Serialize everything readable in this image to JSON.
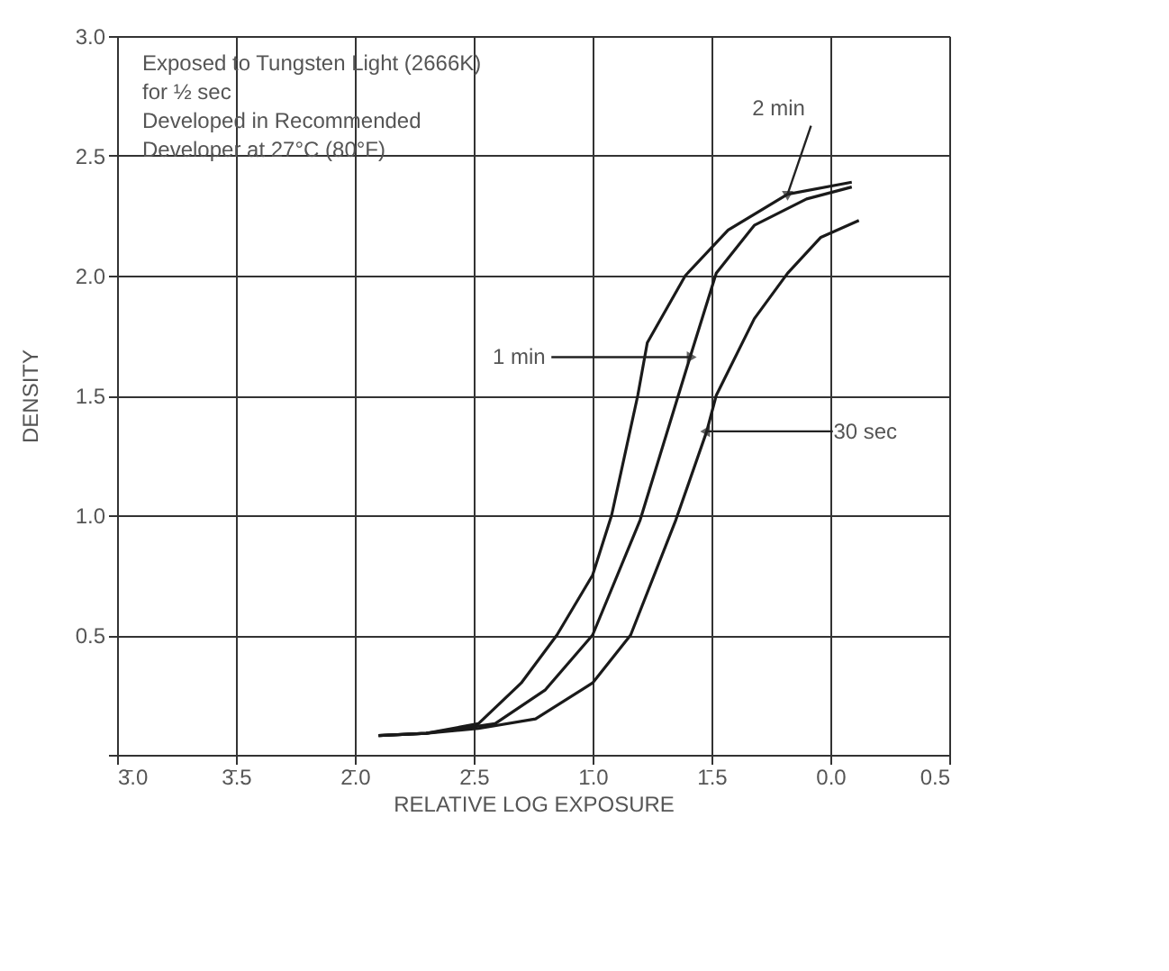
{
  "chart_data": {
    "type": "line",
    "xlabel": "RELATIVE LOG EXPOSURE",
    "ylabel": "DENSITY",
    "xlim": [
      -3.0,
      0.5
    ],
    "ylim": [
      0,
      3.0
    ],
    "xticks": [
      {
        "value": -3.0,
        "label": "3̄.0"
      },
      {
        "value": -2.5,
        "label": "3̄.5"
      },
      {
        "value": -2.0,
        "label": "2̄.0"
      },
      {
        "value": -1.5,
        "label": "2̄.5"
      },
      {
        "value": -1.0,
        "label": "1̄.0"
      },
      {
        "value": -0.5,
        "label": "1̄.5"
      },
      {
        "value": 0.0,
        "label": "0.0"
      },
      0.5
    ],
    "yticks": [
      {
        "value": 0,
        "label": null
      },
      0.5,
      {
        "value": 1.0,
        "label": "1.0"
      },
      1.5,
      {
        "value": 2.0,
        "label": "2.0"
      },
      2.5,
      {
        "value": 3.0,
        "label": "3.0"
      }
    ],
    "grid": true,
    "line_style": "solid",
    "marker": "none",
    "series": [
      {
        "color": "#1a1a1a",
        "x": [
          -1.9,
          -1.7,
          -1.48,
          -1.3,
          -1.15,
          -1.0,
          -0.92,
          -0.81,
          -0.77,
          -0.61,
          -0.43,
          -0.18,
          0.09
        ],
        "values": [
          0.08,
          0.09,
          0.13,
          0.3,
          0.5,
          0.75,
          1.0,
          1.5,
          1.72,
          2.0,
          2.19,
          2.34,
          2.39
        ]
      },
      {
        "color": "#1a1a1a",
        "x": [
          -1.9,
          -1.7,
          -1.48,
          -1.41,
          -1.2,
          -1.0,
          -0.8,
          -0.59,
          -0.48,
          -0.32,
          -0.1,
          0.09
        ],
        "values": [
          0.08,
          0.09,
          0.12,
          0.13,
          0.27,
          0.5,
          0.98,
          1.66,
          2.01,
          2.21,
          2.32,
          2.37
        ]
      },
      {
        "color": "#1a1a1a",
        "x": [
          -1.9,
          -1.7,
          -1.48,
          -1.24,
          -1.0,
          -0.84,
          -0.65,
          -0.52,
          -0.48,
          -0.32,
          -0.18,
          -0.04,
          0.12
        ],
        "values": [
          0.08,
          0.09,
          0.11,
          0.15,
          0.3,
          0.5,
          0.98,
          1.35,
          1.5,
          1.82,
          2.01,
          2.16,
          2.23
        ]
      }
    ],
    "annotations": [
      "Exposed to Tungsten Light (2666K)",
      "for ½ sec",
      "Developed in Recommended",
      "Developer at 27°C (80°F)",
      {
        "text": "2 min",
        "x": -0.18,
        "y": 2.34
      },
      {
        "text": "1 min",
        "x": -0.59,
        "y": 1.66
      },
      {
        "text": "30 sec",
        "x": -0.52,
        "y": 1.35
      }
    ]
  }
}
